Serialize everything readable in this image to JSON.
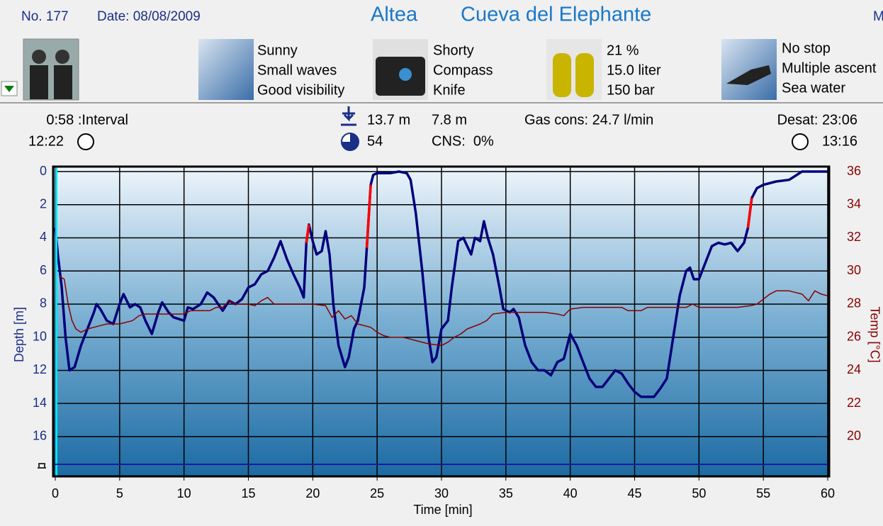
{
  "header": {
    "number": "No. 177",
    "date": "Date: 08/08/2009",
    "location": "Altea",
    "site": "Cueva del Elephante",
    "cut": "M"
  },
  "groups": [
    {
      "lines": [
        "Sunny",
        "Small waves",
        "Good visibility"
      ]
    },
    {
      "lines": [
        "Shorty",
        "Compass",
        "Knife"
      ]
    },
    {
      "lines": [
        "21 %",
        "15.0 liter",
        "150 bar"
      ]
    },
    {
      "lines": [
        "No stop",
        "Multiple ascent",
        "Sea water"
      ]
    }
  ],
  "stats": {
    "interval": "0:58 :Interval",
    "start": "12:22",
    "max_depth": "13.7 m",
    "avg_depth": "7.8 m",
    "gas": "Gas cons: 24.7 l/min",
    "desat": "Desat: 23:06",
    "dive_time": "54",
    "cns": "CNS:  0%",
    "end": "13:16"
  },
  "chart_data": {
    "type": "line",
    "x_label": "Time [min]",
    "y_label": "Depth [m]",
    "y2_label": "Temp [°C]",
    "xlim": [
      0,
      60
    ],
    "xticks": [
      0,
      5,
      10,
      15,
      20,
      25,
      30,
      35,
      40,
      45,
      50,
      55,
      60
    ],
    "ylim": [
      -0.3,
      18.4
    ],
    "yticks": [
      0,
      2,
      4,
      6,
      8,
      10,
      12,
      14,
      16
    ],
    "y_inverted": true,
    "y2lim": [
      17.6,
      36.3
    ],
    "y2ticks": [
      20,
      22,
      24,
      26,
      28,
      30,
      32,
      34,
      36
    ],
    "grid": true,
    "series": [
      {
        "color": "#00007a",
        "x": [
          0,
          0.2,
          0.5,
          0.8,
          1.1,
          1.5,
          2,
          2.5,
          3,
          3.2,
          3.5,
          4,
          4.5,
          5,
          5.3,
          5.8,
          6.2,
          6.6,
          7,
          7.5,
          8,
          8.3,
          8.8,
          9.2,
          10,
          10.3,
          10.7,
          11.3,
          11.8,
          12.3,
          13,
          13.5,
          14,
          14.5,
          15,
          15.5,
          16,
          16.5,
          17,
          17.5,
          18,
          18.5,
          19,
          19.3,
          19.5,
          19.7,
          20,
          20.3,
          20.7,
          21,
          21.3,
          21.6,
          22,
          22.5,
          22.8,
          23.2,
          23.5,
          24,
          24.2,
          24.5,
          24.7,
          25,
          26,
          26.7,
          27.3,
          27.6,
          28,
          28.5,
          29,
          29.3,
          29.6,
          30,
          30.5,
          30.8,
          31.3,
          31.7,
          32,
          32.3,
          32.6,
          33,
          33.3,
          33.6,
          34,
          34.5,
          34.8,
          35.3,
          35.6,
          36,
          36.5,
          37,
          37.5,
          38,
          38.5,
          39,
          39.5,
          40,
          40.5,
          41,
          41.5,
          42,
          42.5,
          43,
          43.5,
          44,
          44.5,
          45,
          45.5,
          46,
          46.5,
          47,
          47.5,
          48,
          48.5,
          49,
          49.3,
          49.6,
          50,
          50.5,
          51,
          51.5,
          52,
          52.5,
          53,
          53.5,
          53.8,
          54.1,
          54.5,
          55,
          56,
          57,
          58,
          60
        ],
        "values": [
          3.4,
          5,
          7,
          10,
          12,
          11.8,
          10.5,
          9.5,
          8.5,
          8,
          8.3,
          9,
          9.2,
          8,
          7.4,
          8.2,
          8,
          8.2,
          9,
          9.8,
          8.5,
          7.9,
          8.5,
          8.8,
          9,
          8.2,
          8.3,
          8,
          7.3,
          7.6,
          8.4,
          7.8,
          8,
          7.7,
          7,
          6.8,
          6.2,
          6,
          5.2,
          4.2,
          5.3,
          6.2,
          7,
          7.6,
          4.3,
          3.2,
          4.2,
          5,
          4.8,
          3.6,
          5,
          8,
          10.5,
          11.8,
          11.2,
          9.5,
          9,
          7,
          4.6,
          0.8,
          0.2,
          0.1,
          0.1,
          0,
          0.1,
          0.5,
          2.5,
          6,
          10,
          11.5,
          11.2,
          9.5,
          9,
          7,
          4.2,
          4,
          4.5,
          5,
          4,
          4.2,
          3,
          4,
          5,
          7,
          8.3,
          8.5,
          8.3,
          8.8,
          10.5,
          11.5,
          12,
          12,
          12.3,
          11.5,
          11.3,
          9.8,
          10.5,
          11.5,
          12.5,
          13,
          13,
          12.5,
          12,
          12.2,
          12.8,
          13.3,
          13.6,
          13.6,
          13.6,
          13.1,
          12.5,
          10,
          7.5,
          6,
          5.8,
          6.5,
          6.5,
          5.5,
          4.5,
          4.3,
          4.4,
          4.3,
          4.8,
          4.3,
          3.4,
          1.6,
          1,
          0.8,
          0.6,
          0.5,
          0,
          0
        ]
      },
      {
        "color": "#ff0000",
        "x": [
          19.5,
          19.7,
          22,
          24.2,
          24.5,
          40,
          53.8,
          54.1
        ],
        "values": [
          4.3,
          3.2,
          null,
          4.6,
          0.8,
          null,
          3.4,
          1.6
        ]
      },
      {
        "color": "#8b0000",
        "axis": "y2",
        "x": [
          0.3,
          0.7,
          1,
          1.3,
          1.6,
          2,
          2.5,
          3,
          3.5,
          4,
          5,
          6,
          6.5,
          7,
          8,
          9,
          10,
          10.5,
          11,
          12,
          12.5,
          13,
          13.5,
          14,
          15,
          15.5,
          16,
          16.5,
          17,
          18,
          19,
          20,
          21,
          21.5,
          22,
          22.5,
          23,
          23.5,
          24.5,
          25,
          25.5,
          26,
          27,
          28,
          29,
          30,
          30.5,
          31,
          31.5,
          32,
          33,
          33.5,
          34,
          35,
          36,
          37,
          38,
          39,
          39.5,
          40,
          41,
          42,
          43,
          44,
          44.5,
          45,
          45.5,
          46,
          47,
          48,
          49,
          49.5,
          50,
          51,
          52,
          53,
          54,
          54.5,
          55,
          55.5,
          56,
          57,
          58,
          58.5,
          59,
          59.5,
          60
        ],
        "values": [
          29.7,
          29.5,
          28,
          27,
          26.5,
          26.3,
          26.5,
          26.6,
          26.7,
          26.8,
          26.8,
          27,
          27.3,
          27.4,
          27.4,
          27.4,
          27.4,
          27.6,
          27.6,
          27.6,
          27.8,
          27.8,
          28.2,
          28,
          28,
          27.9,
          28.2,
          28.4,
          28,
          28,
          28,
          28,
          27.9,
          27.2,
          27.6,
          27.1,
          27.3,
          26.8,
          26.6,
          26.3,
          26.1,
          26,
          26,
          25.8,
          25.6,
          25.5,
          25.7,
          26,
          26.2,
          26.5,
          26.8,
          27,
          27.4,
          27.5,
          27.5,
          27.5,
          27.5,
          27.4,
          27.3,
          27.7,
          27.8,
          27.8,
          27.8,
          27.8,
          27.6,
          27.6,
          27.6,
          27.8,
          27.8,
          27.8,
          27.8,
          28,
          27.8,
          27.8,
          27.8,
          27.8,
          27.9,
          28,
          28.3,
          28.6,
          28.8,
          28.8,
          28.6,
          28.2,
          28.8,
          28.6,
          28.5
        ]
      }
    ]
  }
}
